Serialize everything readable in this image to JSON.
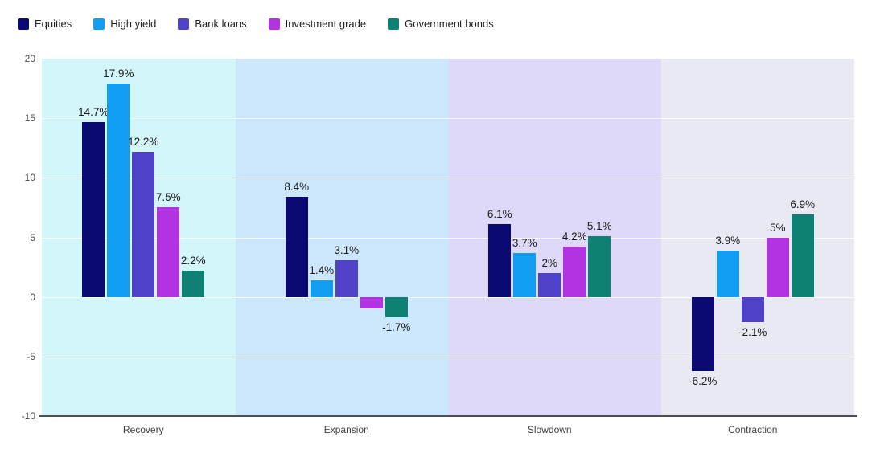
{
  "chart_data": {
    "type": "bar",
    "title": "",
    "xlabel": "",
    "ylabel": "",
    "ylim": [
      -10,
      20
    ],
    "y_ticks": [
      20,
      15,
      10,
      5,
      0,
      -5,
      -10
    ],
    "grid": "horizontal-white-lines-every-5",
    "legend_position": "top-left",
    "categories": [
      "Recovery",
      "Expansion",
      "Slowdown",
      "Contraction"
    ],
    "series": [
      {
        "name": "Equities",
        "color": "#0a0a72",
        "values": [
          14.7,
          8.4,
          6.1,
          -6.2
        ],
        "labels": [
          "14.7%",
          "8.4%",
          "6.1%",
          "-6.2%"
        ]
      },
      {
        "name": "High yield",
        "color": "#119df2",
        "values": [
          17.9,
          1.4,
          3.7,
          3.9
        ],
        "labels": [
          "17.9%",
          "1.4%",
          "3.7%",
          "3.9%"
        ]
      },
      {
        "name": "Bank loans",
        "color": "#4f41c8",
        "values": [
          12.2,
          3.1,
          2.0,
          -2.1
        ],
        "labels": [
          "12.2%",
          "3.1%",
          "2%",
          "-2.1%"
        ]
      },
      {
        "name": "Investment grade",
        "color": "#b233e1",
        "values": [
          7.5,
          -1.0,
          4.2,
          5.0
        ],
        "labels": [
          "7.5%",
          "",
          "4.2%",
          "5%"
        ]
      },
      {
        "name": "Government bonds",
        "color": "#0e8174",
        "values": [
          2.2,
          -1.7,
          5.1,
          6.9
        ],
        "labels": [
          "2.2%",
          "-1.7%",
          "5.1%",
          "6.9%"
        ]
      }
    ],
    "plot_bands": [
      {
        "category": "Recovery",
        "color": "#d3f6fa"
      },
      {
        "category": "Expansion",
        "color": "#cce6fb"
      },
      {
        "category": "Slowdown",
        "color": "#ded9f8"
      },
      {
        "category": "Contraction",
        "color": "#e8e9f3"
      }
    ]
  }
}
